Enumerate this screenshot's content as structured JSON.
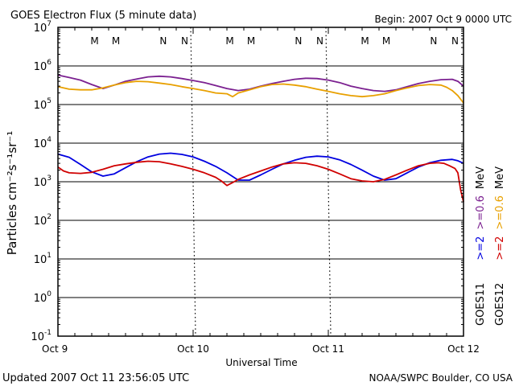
{
  "header": {
    "title": "GOES Electron Flux (5 minute data)",
    "begin": "Begin: 2007 Oct 9 0000 UTC"
  },
  "footer": {
    "updated": "Updated 2007 Oct 11 23:56:05 UTC",
    "credit": "NOAA/SWPC Boulder, CO USA"
  },
  "chart_data": {
    "type": "line",
    "title": "GOES Electron Flux (5 minute data)",
    "xlabel": "Universal Time",
    "ylabel": "Particles cm⁻²s⁻¹sr⁻¹",
    "yscale": "log",
    "ylim": [
      0.1,
      10000000
    ],
    "xlim": [
      0,
      72
    ],
    "x_unit": "hours since 2007 Oct 9 0000 UTC",
    "y_tick_labels": [
      {
        "base": "10",
        "exp": "7",
        "value": 10000000
      },
      {
        "base": "10",
        "exp": "6",
        "value": 1000000
      },
      {
        "base": "10",
        "exp": "5",
        "value": 100000
      },
      {
        "base": "10",
        "exp": "4",
        "value": 10000
      },
      {
        "base": "10",
        "exp": "3",
        "value": 1000
      },
      {
        "base": "10",
        "exp": "2",
        "value": 100
      },
      {
        "base": "10",
        "exp": "1",
        "value": 10
      },
      {
        "base": "10",
        "exp": "0",
        "value": 1
      },
      {
        "base": "10",
        "exp": "-1",
        "value": 0.1
      }
    ],
    "x_tick_labels": [
      {
        "label": "Oct 9",
        "hour": 0
      },
      {
        "label": "Oct 10",
        "hour": 24
      },
      {
        "label": "Oct 11",
        "hour": 48
      },
      {
        "label": "Oct 12",
        "hour": 72
      }
    ],
    "threshold": {
      "value": 1000,
      "style": "dashed"
    },
    "grid": true,
    "legend_placement": "right, vertical",
    "legend": [
      {
        "satellite": "GOES11",
        "channel": ">=2",
        "channel2": ">=0.6",
        "unit": "MeV"
      },
      {
        "satellite": "GOES12",
        "channel": ">=2",
        "channel2": ">=0.6",
        "unit": "MeV"
      }
    ],
    "mn_markers": [
      {
        "label": "M",
        "hour": 6.5,
        "color": "#d00000"
      },
      {
        "label": "M",
        "hour": 10.3,
        "color": "#0000d0"
      },
      {
        "label": "N",
        "hour": 18.7,
        "color": "#d00000"
      },
      {
        "label": "N",
        "hour": 22.5,
        "color": "#0000d0"
      },
      {
        "label": "M",
        "hour": 30.5,
        "color": "#d00000"
      },
      {
        "label": "M",
        "hour": 34.3,
        "color": "#0000d0"
      },
      {
        "label": "N",
        "hour": 42.7,
        "color": "#d00000"
      },
      {
        "label": "N",
        "hour": 46.5,
        "color": "#0000d0"
      },
      {
        "label": "M",
        "hour": 54.5,
        "color": "#d00000"
      },
      {
        "label": "M",
        "hour": 58.3,
        "color": "#0000d0"
      },
      {
        "label": "N",
        "hour": 66.7,
        "color": "#d00000"
      },
      {
        "label": "N",
        "hour": 70.5,
        "color": "#0000d0"
      }
    ],
    "series": [
      {
        "name": "GOES11 >=2 MeV",
        "color": "#0000e0",
        "x": [
          0,
          2,
          4,
          6,
          8,
          10,
          12,
          14,
          16,
          18,
          20,
          22,
          24,
          26,
          28,
          30,
          32,
          34,
          36,
          38,
          40,
          42,
          44,
          46,
          48,
          50,
          52,
          54,
          56,
          58,
          60,
          62,
          64,
          66,
          68,
          70,
          71,
          72
        ],
        "y": [
          5200,
          4300,
          2800,
          1800,
          1400,
          1600,
          2300,
          3300,
          4400,
          5200,
          5500,
          5100,
          4400,
          3400,
          2500,
          1700,
          1100,
          1100,
          1500,
          2100,
          2900,
          3600,
          4300,
          4600,
          4400,
          3700,
          2800,
          2000,
          1400,
          1100,
          1200,
          1700,
          2400,
          3100,
          3600,
          3800,
          3500,
          3000
        ]
      },
      {
        "name": "GOES12 >=2 MeV",
        "color": "#d00000",
        "x": [
          0,
          1,
          2,
          4,
          6,
          8,
          10,
          12,
          14,
          16,
          18,
          20,
          22,
          24,
          26,
          28,
          29,
          30,
          31,
          32,
          34,
          36,
          38,
          40,
          42,
          44,
          46,
          48,
          50,
          52,
          54,
          56,
          58,
          60,
          62,
          64,
          66,
          67.5,
          68.5,
          69.5,
          70.5,
          71,
          71.5,
          72
        ],
        "y": [
          2400,
          1900,
          1700,
          1650,
          1750,
          2100,
          2600,
          2900,
          3200,
          3400,
          3300,
          2900,
          2500,
          2100,
          1700,
          1300,
          1050,
          800,
          950,
          1150,
          1500,
          1900,
          2400,
          2900,
          3100,
          3000,
          2600,
          2100,
          1600,
          1200,
          1050,
          1000,
          1150,
          1500,
          2000,
          2600,
          3000,
          3100,
          3000,
          2600,
          2200,
          1700,
          600,
          300
        ]
      },
      {
        "name": "GOES11 >=0.6 MeV",
        "color": "#7b2090",
        "x": [
          0,
          2,
          4,
          6,
          8,
          10,
          12,
          14,
          16,
          18,
          20,
          22,
          24,
          26,
          28,
          30,
          32,
          34,
          36,
          38,
          40,
          42,
          44,
          46,
          48,
          50,
          52,
          54,
          56,
          58,
          60,
          62,
          64,
          66,
          68,
          70,
          71,
          72
        ],
        "y": [
          580000,
          500000,
          430000,
          330000,
          260000,
          320000,
          400000,
          460000,
          520000,
          540000,
          520000,
          470000,
          420000,
          370000,
          310000,
          260000,
          230000,
          250000,
          300000,
          350000,
          400000,
          450000,
          480000,
          470000,
          430000,
          370000,
          300000,
          260000,
          230000,
          220000,
          240000,
          290000,
          350000,
          400000,
          440000,
          450000,
          400000,
          300000
        ]
      },
      {
        "name": "GOES12 >=0.6 MeV",
        "color": "#e8a000",
        "x": [
          0,
          2,
          4,
          6,
          8,
          10,
          12,
          14,
          16,
          18,
          20,
          22,
          24,
          26,
          28,
          30,
          31,
          32,
          34,
          36,
          38,
          40,
          42,
          44,
          46,
          48,
          50,
          52,
          54,
          56,
          58,
          60,
          62,
          64,
          66,
          68,
          69,
          70,
          71,
          72
        ],
        "y": [
          290000,
          250000,
          240000,
          240000,
          270000,
          320000,
          370000,
          400000,
          390000,
          360000,
          330000,
          290000,
          260000,
          230000,
          200000,
          190000,
          160000,
          200000,
          240000,
          290000,
          330000,
          340000,
          320000,
          290000,
          250000,
          220000,
          190000,
          170000,
          160000,
          170000,
          190000,
          230000,
          270000,
          310000,
          330000,
          320000,
          280000,
          230000,
          170000,
          110000
        ]
      }
    ]
  }
}
